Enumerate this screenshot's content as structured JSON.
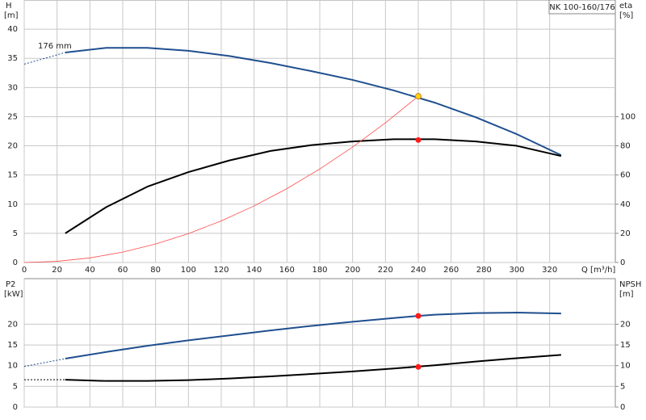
{
  "chart_data": [
    {
      "type": "line",
      "title": "NK 100-160/176",
      "annotation": "176 mm",
      "ylabel": "H",
      "yunit": "[m]",
      "y2label": "eta",
      "y2unit": "[%]",
      "xlabel": "Q [m³/h]",
      "xlim": [
        0,
        360
      ],
      "xticks": [
        0,
        20,
        40,
        60,
        80,
        100,
        120,
        140,
        160,
        180,
        200,
        220,
        240,
        260,
        280,
        300,
        320
      ],
      "ylim": [
        0,
        45
      ],
      "yticks": [
        0,
        5,
        10,
        15,
        20,
        25,
        30,
        35,
        40
      ],
      "y2lim": [
        0,
        180
      ],
      "y2ticks": [
        0,
        20,
        40,
        60,
        80,
        100
      ],
      "grid": true,
      "series": [
        {
          "color": "#1f4f8f",
          "style": "solid",
          "width": 2,
          "axis": "y",
          "x": [
            25,
            50,
            75,
            100,
            125,
            150,
            175,
            200,
            225,
            250,
            275,
            300,
            327
          ],
          "values": [
            36,
            36.8,
            36.8,
            36.3,
            35.4,
            34.2,
            32.8,
            31.3,
            29.5,
            27.4,
            24.9,
            22,
            18.4
          ]
        },
        {
          "color": "#1f4f8f",
          "style": "dotted",
          "width": 1,
          "axis": "y",
          "x": [
            0,
            25
          ],
          "values": [
            34,
            36
          ]
        },
        {
          "color": "#000000",
          "style": "solid",
          "width": 2,
          "axis": "y2",
          "x": [
            25,
            50,
            75,
            100,
            125,
            150,
            175,
            200,
            225,
            250,
            275,
            300,
            327
          ],
          "values": [
            20,
            38,
            52,
            62,
            70,
            76.5,
            80.5,
            83,
            84.5,
            84.5,
            83,
            80,
            73
          ]
        },
        {
          "color": "#ff4a4a",
          "style": "solid",
          "width": 0.8,
          "axis": "y",
          "x": [
            0,
            20,
            40,
            60,
            80,
            100,
            120,
            140,
            160,
            180,
            200,
            220,
            240
          ],
          "values": [
            0,
            0.2,
            0.79,
            1.78,
            3.17,
            4.95,
            7.13,
            9.7,
            12.67,
            16.03,
            19.79,
            23.95,
            28.5
          ]
        }
      ],
      "points": [
        {
          "x": 240,
          "value": 28.5,
          "axis": "y",
          "color": "#ffd21f"
        },
        {
          "x": 240,
          "value": 84,
          "axis": "y2",
          "color": "#ff1a1a"
        }
      ]
    },
    {
      "type": "line",
      "ylabel": "P2",
      "yunit": "[kW]",
      "y2label": "NPSH",
      "y2unit": "[m]",
      "xlim": [
        0,
        360
      ],
      "xticks": [
        0,
        20,
        40,
        60,
        80,
        100,
        120,
        140,
        160,
        180,
        200,
        220,
        240,
        260,
        280,
        300,
        320
      ],
      "ylim": [
        0,
        31
      ],
      "yticks": [
        0,
        5,
        10,
        15,
        20
      ],
      "y2lim": [
        0,
        31
      ],
      "y2ticks": [
        0,
        5,
        10,
        15,
        20
      ],
      "grid": true,
      "series": [
        {
          "color": "#1f4f8f",
          "style": "solid",
          "width": 2,
          "axis": "y",
          "x": [
            25,
            50,
            75,
            100,
            125,
            150,
            175,
            200,
            225,
            240,
            250,
            275,
            300,
            327
          ],
          "values": [
            11.7,
            13.3,
            14.8,
            16.1,
            17.3,
            18.5,
            19.6,
            20.6,
            21.5,
            22,
            22.3,
            22.7,
            22.8,
            22.6
          ]
        },
        {
          "color": "#1f4f8f",
          "style": "dotted",
          "width": 1,
          "axis": "y",
          "x": [
            0,
            25
          ],
          "values": [
            9.8,
            11.7
          ]
        },
        {
          "color": "#000000",
          "style": "solid",
          "width": 2,
          "axis": "y2",
          "x": [
            25,
            50,
            75,
            100,
            125,
            150,
            175,
            200,
            225,
            250,
            275,
            300,
            327
          ],
          "values": [
            6.6,
            6.3,
            6.3,
            6.5,
            6.9,
            7.4,
            8,
            8.6,
            9.3,
            10.1,
            11,
            11.8,
            12.6
          ]
        },
        {
          "color": "#000000",
          "style": "dotted",
          "width": 1,
          "axis": "y2",
          "x": [
            0,
            25
          ],
          "values": [
            6.6,
            6.6
          ]
        }
      ],
      "points": [
        {
          "x": 240,
          "value": 22,
          "axis": "y",
          "color": "#ff1a1a"
        },
        {
          "x": 240,
          "value": 9.7,
          "axis": "y2",
          "color": "#ff1a1a"
        }
      ]
    }
  ]
}
